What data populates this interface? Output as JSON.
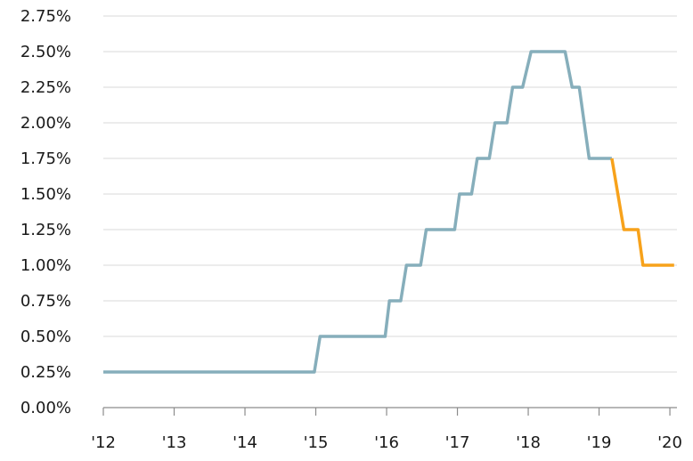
{
  "chart_data": {
    "type": "line",
    "title": "",
    "xlabel": "",
    "ylabel": "",
    "x_tick_labels": [
      "'12",
      "'13",
      "'14",
      "'15",
      "'16",
      "'17",
      "'18",
      "'19",
      "'20"
    ],
    "x_tick_years": [
      2012,
      2013,
      2014,
      2015,
      2016,
      2017,
      2018,
      2019,
      2020
    ],
    "xlim": [
      2012,
      2020.1
    ],
    "y_tick_labels": [
      "0.00%",
      "0.25%",
      "0.50%",
      "0.75%",
      "1.00%",
      "1.25%",
      "1.50%",
      "1.75%",
      "2.00%",
      "2.25%",
      "2.50%",
      "2.75%"
    ],
    "y_tick_values": [
      0,
      0.25,
      0.5,
      0.75,
      1.0,
      1.25,
      1.5,
      1.75,
      2.0,
      2.25,
      2.5,
      2.75
    ],
    "ylim": [
      0,
      2.75
    ],
    "grid": "horizontal",
    "legend": "none",
    "series": [
      {
        "color": "#86aebb",
        "x": [
          2012.0,
          2014.98,
          2015.06,
          2015.98,
          2016.04,
          2016.2,
          2016.28,
          2016.48,
          2016.56,
          2016.96,
          2017.03,
          2017.2,
          2017.28,
          2017.45,
          2017.53,
          2017.7,
          2017.78,
          2017.92,
          2018.04,
          2018.52,
          2018.62,
          2018.72,
          2018.86,
          2019.18
        ],
        "y": [
          0.25,
          0.25,
          0.5,
          0.5,
          0.75,
          0.75,
          1.0,
          1.0,
          1.25,
          1.25,
          1.5,
          1.5,
          1.75,
          1.75,
          2.0,
          2.0,
          2.25,
          2.25,
          2.5,
          2.5,
          2.25,
          2.25,
          1.75,
          1.75
        ]
      },
      {
        "color": "#f7a21b",
        "x": [
          2019.18,
          2019.35,
          2019.55,
          2019.62,
          2020.06
        ],
        "y": [
          1.75,
          1.25,
          1.25,
          1.0,
          1.0
        ]
      }
    ]
  }
}
